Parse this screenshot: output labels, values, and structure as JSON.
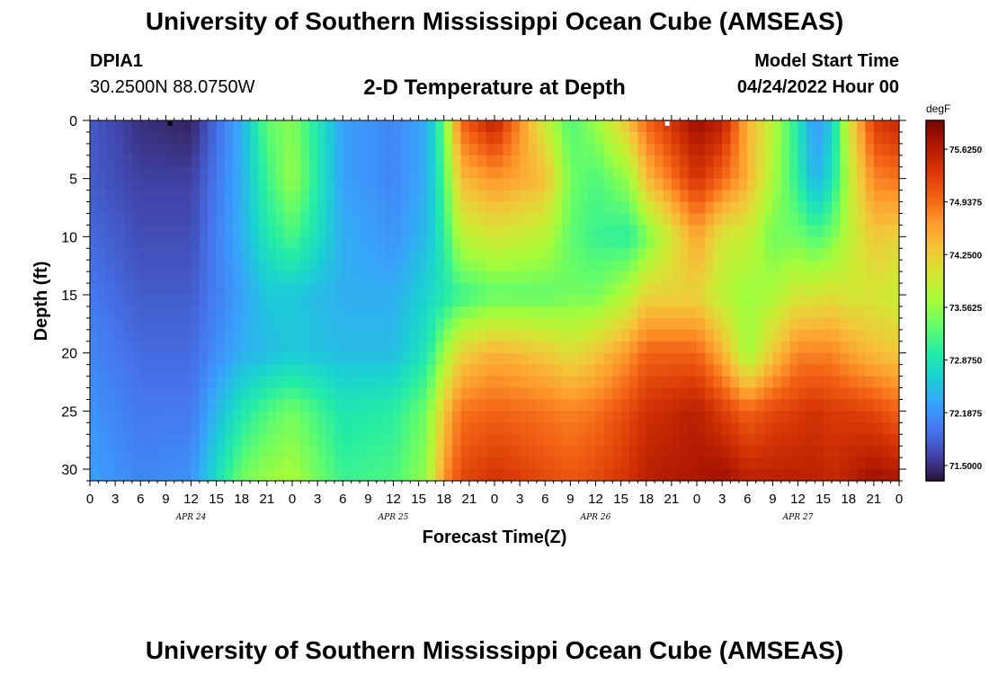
{
  "header": {
    "title": "University of Southern Mississippi Ocean Cube (AMSEAS)",
    "station_id": "DPIA1",
    "coordinates": "30.2500N  88.0750W",
    "subtitle": "2-D Temperature at Depth",
    "model_start_label": "Model Start Time",
    "model_start_value": "04/24/2022 Hour 00"
  },
  "footer": {
    "title": "University of Southern Mississippi Ocean Cube (AMSEAS)"
  },
  "chart_data": {
    "type": "heatmap",
    "title": "2-D Temperature at Depth",
    "xlabel": "Forecast Time(Z)",
    "ylabel": "Depth (ft)",
    "x_range_hours": [
      0,
      96
    ],
    "x_tick_step_hours": 3,
    "x_tick_labels": [
      "0",
      "3",
      "6",
      "9",
      "12",
      "15",
      "18",
      "21",
      "0",
      "3",
      "6",
      "9",
      "12",
      "15",
      "18",
      "21",
      "0",
      "3",
      "6",
      "9",
      "12",
      "15",
      "18",
      "21",
      "0",
      "3",
      "6",
      "9",
      "12",
      "15",
      "18",
      "21",
      "0"
    ],
    "day_labels": [
      {
        "text": "APR 24",
        "hour": 12
      },
      {
        "text": "APR 25",
        "hour": 36
      },
      {
        "text": "APR 26",
        "hour": 60
      },
      {
        "text": "APR 27",
        "hour": 84
      }
    ],
    "y_range_ft": [
      0,
      31
    ],
    "y_ticks": [
      0,
      5,
      10,
      15,
      20,
      25,
      30
    ],
    "colorbar": {
      "unit": "degF",
      "min": 71.3,
      "max": 76.0,
      "tick_values": [
        71.5,
        72.1875,
        72.875,
        73.5625,
        74.25,
        74.9375,
        75.625
      ],
      "tick_labels": [
        "71.5000",
        "72.1875",
        "72.8750",
        "73.5625",
        "74.2500",
        "74.9375",
        "75.6250"
      ],
      "colormap": [
        "#30123b",
        "#4145ab",
        "#4675ed",
        "#39a2fc",
        "#1bcfd4",
        "#24eca6",
        "#61fc6c",
        "#a4fc3b",
        "#d1e834",
        "#f3c63a",
        "#fe9b2d",
        "#f36315",
        "#d93806",
        "#b11901",
        "#7a0402"
      ]
    },
    "depth_profiles": {
      "depths_ft": [
        0,
        5,
        10,
        15,
        20,
        25,
        31
      ],
      "hours": [
        0,
        6,
        12,
        18,
        21,
        24,
        30,
        36,
        40,
        42,
        44,
        48,
        54,
        57,
        60,
        64,
        66,
        72,
        75,
        78,
        81,
        84,
        86,
        88,
        90,
        93,
        96
      ],
      "temps_degF": [
        [
          71.8,
          71.8,
          71.9,
          72.0,
          72.1,
          72.2,
          72.3
        ],
        [
          71.5,
          71.6,
          71.7,
          71.8,
          71.9,
          72.0,
          72.1
        ],
        [
          71.4,
          71.6,
          71.7,
          71.8,
          71.9,
          72.0,
          72.2
        ],
        [
          72.4,
          72.4,
          72.4,
          72.3,
          72.4,
          72.9,
          73.4
        ],
        [
          73.3,
          73.1,
          72.9,
          72.6,
          72.5,
          73.2,
          73.6
        ],
        [
          73.5,
          73.6,
          73.2,
          72.6,
          72.6,
          73.4,
          73.7
        ],
        [
          72.3,
          72.3,
          72.4,
          72.4,
          72.5,
          72.9,
          73.1
        ],
        [
          72.1,
          72.1,
          72.2,
          72.4,
          72.5,
          73.0,
          73.2
        ],
        [
          72.4,
          72.4,
          72.5,
          72.7,
          72.9,
          73.4,
          73.6
        ],
        [
          73.3,
          73.2,
          73.0,
          72.9,
          73.6,
          74.3,
          74.7
        ],
        [
          75.0,
          74.4,
          73.8,
          73.1,
          74.2,
          74.9,
          75.2
        ],
        [
          75.6,
          74.7,
          74.0,
          73.3,
          74.5,
          75.0,
          75.4
        ],
        [
          73.9,
          74.4,
          73.8,
          73.3,
          74.3,
          74.9,
          75.2
        ],
        [
          73.2,
          73.4,
          73.3,
          73.4,
          74.1,
          74.8,
          75.1
        ],
        [
          73.6,
          73.2,
          73.1,
          73.4,
          74.3,
          74.9,
          75.2
        ],
        [
          74.4,
          73.6,
          73.0,
          73.8,
          74.7,
          75.2,
          75.4
        ],
        [
          75.0,
          74.4,
          73.4,
          74.2,
          75.0,
          75.4,
          75.6
        ],
        [
          75.8,
          75.4,
          74.6,
          74.2,
          75.0,
          75.6,
          75.7
        ],
        [
          75.6,
          75.0,
          74.0,
          73.8,
          74.5,
          75.3,
          75.8
        ],
        [
          74.5,
          74.5,
          73.9,
          73.6,
          73.6,
          75.0,
          75.6
        ],
        [
          73.8,
          73.7,
          73.4,
          73.7,
          74.3,
          75.2,
          75.6
        ],
        [
          72.9,
          73.0,
          73.4,
          74.0,
          74.8,
          75.3,
          75.6
        ],
        [
          72.2,
          72.4,
          73.2,
          74.0,
          74.8,
          75.4,
          75.6
        ],
        [
          72.6,
          72.8,
          73.4,
          74.1,
          74.8,
          75.3,
          75.5
        ],
        [
          74.0,
          73.8,
          73.8,
          74.0,
          74.6,
          75.3,
          75.6
        ],
        [
          75.3,
          74.8,
          74.3,
          74.0,
          74.4,
          75.2,
          75.8
        ],
        [
          75.5,
          74.9,
          74.2,
          73.9,
          74.3,
          75.0,
          75.7
        ]
      ]
    },
    "markers": [
      {
        "hour": 9.5,
        "depth_ft": 0,
        "color": "#000000"
      },
      {
        "hour": 68.5,
        "depth_ft": 0,
        "color": "#ffffff"
      }
    ]
  }
}
